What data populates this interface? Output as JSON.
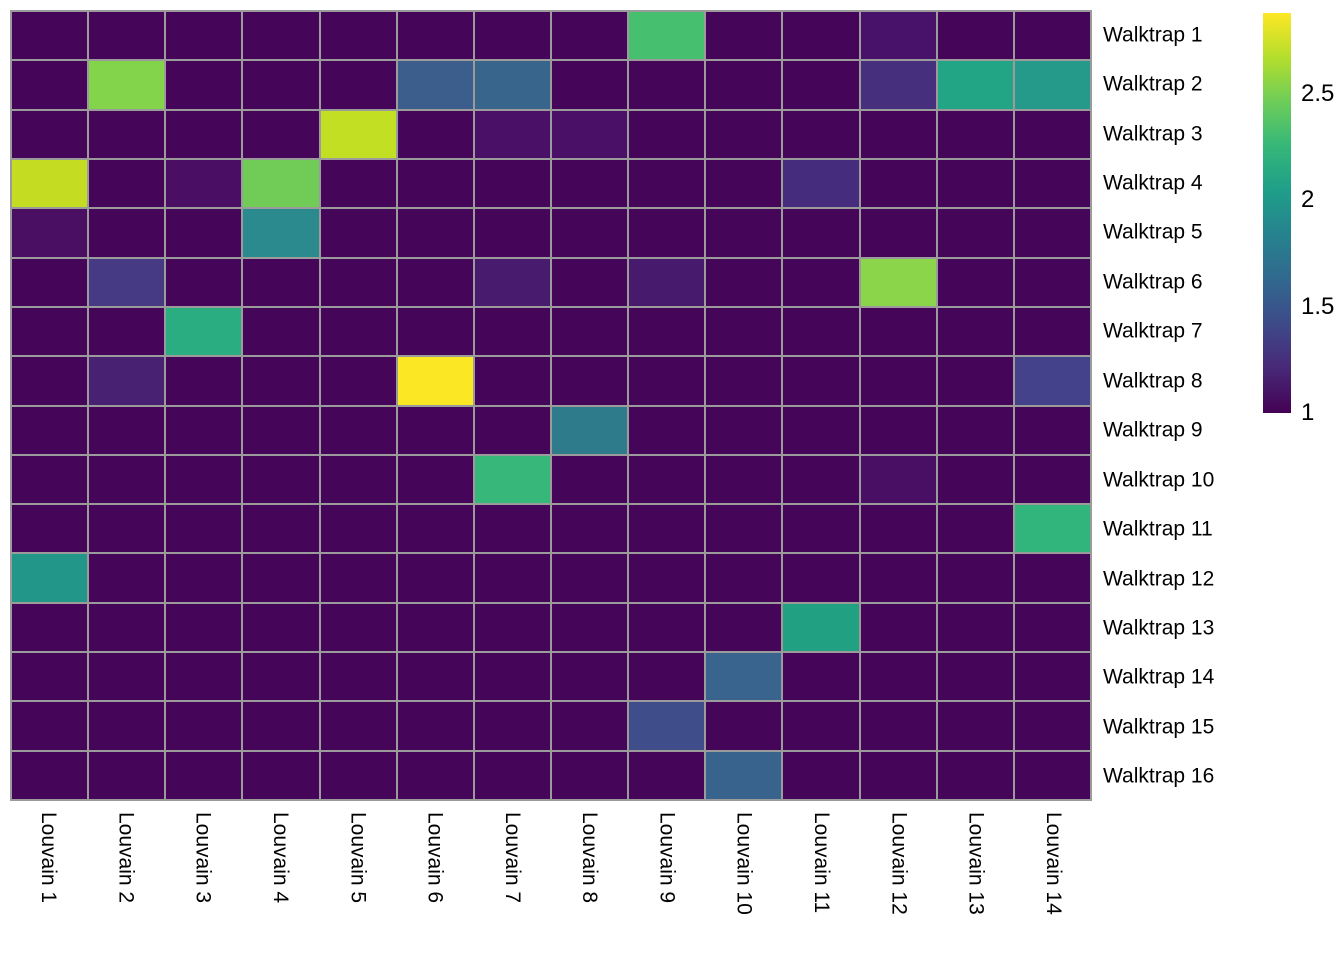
{
  "chart_data": {
    "type": "heatmap",
    "title": "",
    "x_axis_labels": [
      "Louvain 1",
      "Louvain 2",
      "Louvain 3",
      "Louvain 4",
      "Louvain 5",
      "Louvain 6",
      "Louvain 7",
      "Louvain 8",
      "Louvain 9",
      "Louvain 10",
      "Louvain 11",
      "Louvain 12",
      "Louvain 13",
      "Louvain 14"
    ],
    "y_axis_labels": [
      "Walktrap 1",
      "Walktrap 2",
      "Walktrap 3",
      "Walktrap 4",
      "Walktrap 5",
      "Walktrap 6",
      "Walktrap 7",
      "Walktrap 8",
      "Walktrap 9",
      "Walktrap 10",
      "Walktrap 11",
      "Walktrap 12",
      "Walktrap 13",
      "Walktrap 14",
      "Walktrap 15",
      "Walktrap 16"
    ],
    "values": [
      [
        1,
        1,
        1,
        1,
        1,
        1,
        1,
        1,
        2.22,
        1,
        1,
        1.13,
        1,
        1
      ],
      [
        1,
        2.41,
        1,
        1,
        1,
        1.49,
        1.55,
        1,
        1,
        1,
        1,
        1.25,
        1.98,
        1.9
      ],
      [
        1,
        1,
        1,
        1,
        2.6,
        1,
        1.09,
        1.09,
        1,
        1,
        1,
        1,
        1,
        1
      ],
      [
        2.6,
        1,
        1.09,
        2.33,
        1,
        1,
        1,
        1,
        1,
        1,
        1.21,
        1,
        1,
        1
      ],
      [
        1.08,
        1,
        1,
        1.81,
        1,
        1,
        1,
        1,
        1,
        1,
        1,
        1,
        1,
        1
      ],
      [
        1,
        1.3,
        1,
        1,
        1,
        1,
        1.15,
        1,
        1.15,
        1,
        1,
        2.43,
        1,
        1
      ],
      [
        1,
        1,
        2.03,
        1,
        1,
        1,
        1,
        1,
        1,
        1,
        1,
        1,
        1,
        1
      ],
      [
        1,
        1.17,
        1,
        1,
        1,
        2.88,
        1,
        1,
        1,
        1,
        1,
        1,
        1,
        1.34
      ],
      [
        1,
        1,
        1,
        1,
        1,
        1,
        1,
        1.71,
        1,
        1,
        1,
        1,
        1,
        1
      ],
      [
        1,
        1,
        1,
        1,
        1,
        1,
        2.13,
        1,
        1,
        1,
        1,
        1.09,
        1,
        1
      ],
      [
        1,
        1,
        1,
        1,
        1,
        1,
        1,
        1,
        1,
        1,
        1,
        1,
        1,
        2.11
      ],
      [
        1.86,
        1,
        1,
        1,
        1,
        1,
        1,
        1,
        1,
        1,
        1,
        1,
        1,
        1
      ],
      [
        1,
        1,
        1,
        1,
        1,
        1,
        1,
        1,
        1,
        1,
        1.96,
        1,
        1,
        1
      ],
      [
        1,
        1,
        1,
        1,
        1,
        1,
        1,
        1,
        1,
        1.53,
        1,
        1,
        1,
        1
      ],
      [
        1,
        1,
        1,
        1,
        1,
        1,
        1,
        1,
        1.39,
        1,
        1,
        1,
        1,
        1
      ],
      [
        1,
        1,
        1,
        1,
        1,
        1,
        1,
        1,
        1,
        1.53,
        1,
        1,
        1,
        1
      ]
    ],
    "cell_colors": [
      [
        null,
        null,
        null,
        null,
        null,
        null,
        null,
        null,
        "#46c06e",
        null,
        null,
        "#48116a",
        null,
        null
      ],
      [
        null,
        "#84d44b",
        null,
        null,
        null,
        "#3b5e8c",
        "#37658c",
        null,
        null,
        null,
        null,
        "#46307e",
        "#21a585",
        "#259a8a"
      ],
      [
        null,
        null,
        null,
        null,
        "#c2df23",
        null,
        "#4a0f66",
        "#4a0f66",
        null,
        null,
        null,
        null,
        null,
        null
      ],
      [
        "#c4dd23",
        null,
        "#4a0e64",
        "#70cc56",
        null,
        null,
        null,
        null,
        null,
        null,
        "#452c7c",
        null,
        null,
        null
      ],
      [
        "#4a0e62",
        null,
        null,
        "#2a8a8d",
        null,
        null,
        null,
        null,
        null,
        null,
        null,
        null,
        null,
        null
      ],
      [
        null,
        "#473a84",
        null,
        null,
        null,
        null,
        "#481b6e",
        null,
        "#481a6d",
        null,
        null,
        "#8bd54a",
        null,
        null
      ],
      [
        null,
        null,
        "#2aad80",
        null,
        null,
        null,
        null,
        null,
        null,
        null,
        null,
        null,
        null,
        null
      ],
      [
        null,
        "#482173",
        null,
        null,
        null,
        "#fce724",
        null,
        null,
        null,
        null,
        null,
        null,
        null,
        "#44428b"
      ],
      [
        null,
        null,
        null,
        null,
        null,
        null,
        null,
        "#2e7b8c",
        null,
        null,
        null,
        null,
        null,
        null
      ],
      [
        null,
        null,
        null,
        null,
        null,
        null,
        "#38b77a",
        null,
        null,
        null,
        null,
        "#480f65",
        null,
        null
      ],
      [
        null,
        null,
        null,
        null,
        null,
        null,
        null,
        null,
        null,
        null,
        null,
        null,
        null,
        "#32b57d"
      ],
      [
        "#229689",
        null,
        null,
        null,
        null,
        null,
        null,
        null,
        null,
        null,
        null,
        null,
        null,
        null
      ],
      [
        null,
        null,
        null,
        null,
        null,
        null,
        null,
        null,
        null,
        null,
        "#21a181",
        null,
        null,
        null
      ],
      [
        null,
        null,
        null,
        null,
        null,
        null,
        null,
        null,
        null,
        "#38648e",
        null,
        null,
        null,
        null
      ],
      [
        null,
        null,
        null,
        null,
        null,
        null,
        null,
        null,
        "#3f4d8a",
        null,
        null,
        null,
        null,
        null
      ],
      [
        null,
        null,
        null,
        null,
        null,
        null,
        null,
        null,
        null,
        "#38638d",
        null,
        null,
        null,
        null
      ]
    ],
    "base_color": "#450559",
    "grid_color": "#9b9b9b",
    "palette_name": "viridis",
    "palette_stops": [
      "#440154",
      "#482878",
      "#3e4a89",
      "#31688e",
      "#26828e",
      "#1f9e89",
      "#35b779",
      "#6dcd59",
      "#b4de2c",
      "#fde725"
    ],
    "colorbar": {
      "domain": [
        1,
        2.88
      ],
      "ticks": [
        {
          "label": "2.5",
          "value": 2.5
        },
        {
          "label": "2",
          "value": 2.0
        },
        {
          "label": "1.5",
          "value": 1.5
        },
        {
          "label": "1",
          "value": 1.0
        }
      ],
      "position": "right"
    },
    "legend_position": "right",
    "grid_on": true
  }
}
